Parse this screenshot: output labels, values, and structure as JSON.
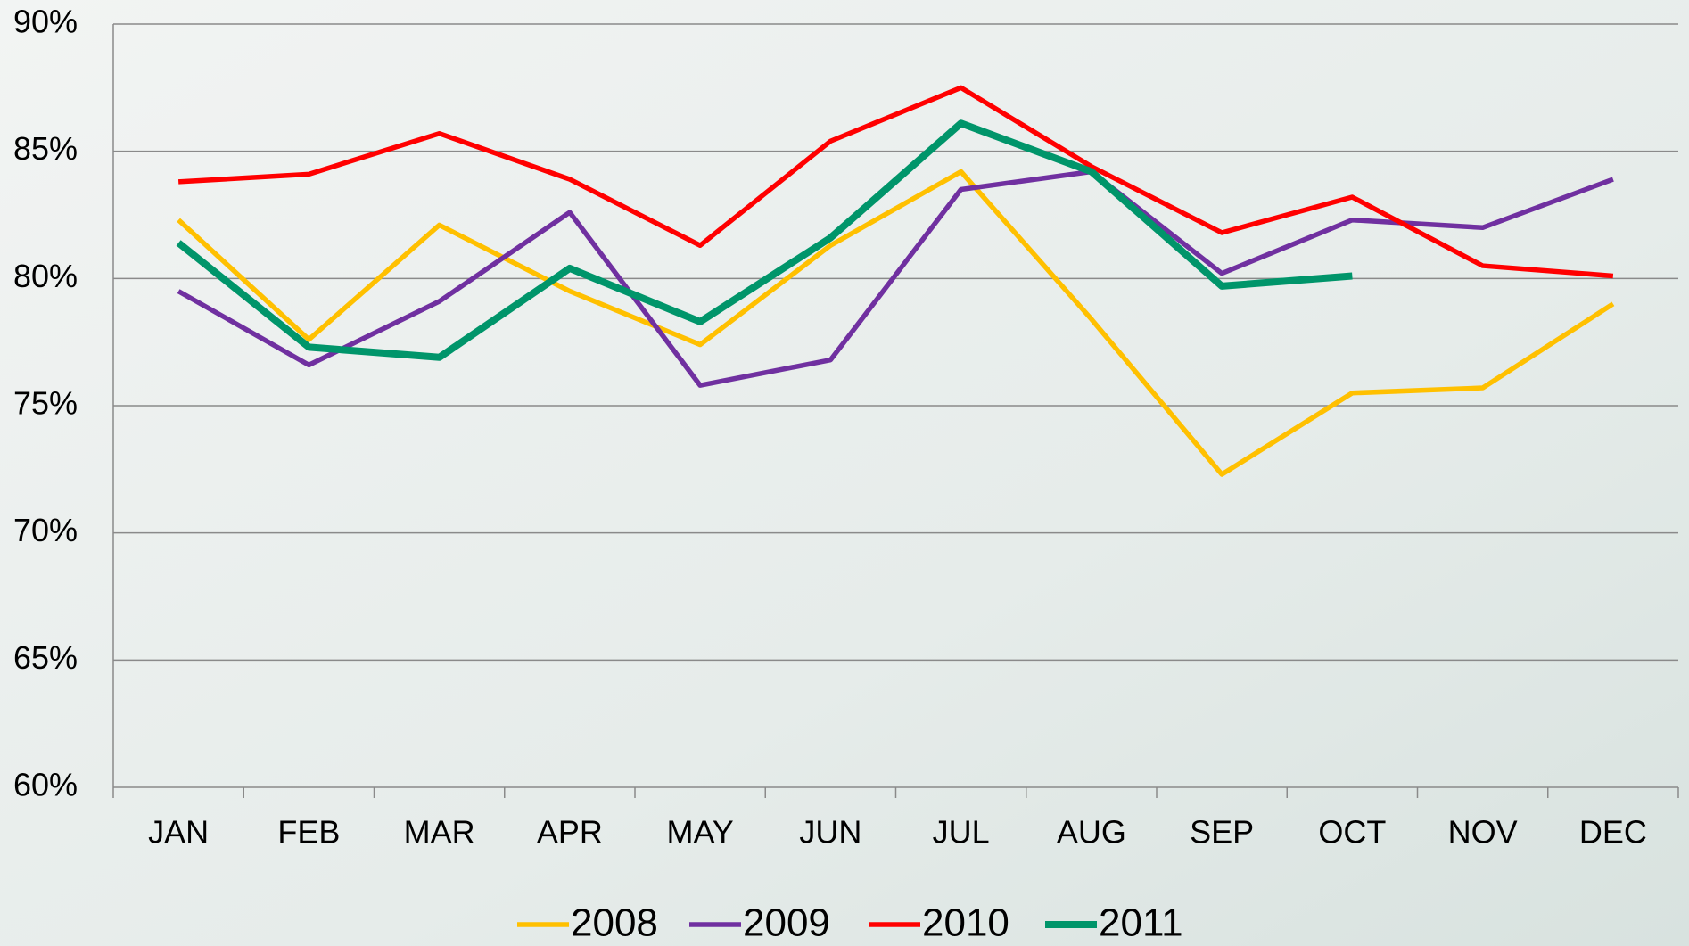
{
  "chart_data": {
    "type": "line",
    "categories": [
      "JAN",
      "FEB",
      "MAR",
      "APR",
      "MAY",
      "JUN",
      "JUL",
      "AUG",
      "SEP",
      "OCT",
      "NOV",
      "DEC"
    ],
    "series": [
      {
        "name": "2008",
        "color": "#ffc000",
        "values": [
          82.3,
          77.6,
          82.1,
          79.5,
          77.4,
          81.3,
          84.2,
          78.4,
          72.3,
          75.5,
          75.7,
          79.0
        ]
      },
      {
        "name": "2009",
        "color": "#7030a0",
        "values": [
          79.5,
          76.6,
          79.1,
          82.6,
          75.8,
          76.8,
          83.5,
          84.2,
          80.2,
          82.3,
          82.0,
          83.9
        ]
      },
      {
        "name": "2010",
        "color": "#ff0000",
        "values": [
          83.8,
          84.1,
          85.7,
          83.9,
          81.3,
          85.4,
          87.5,
          84.4,
          81.8,
          83.2,
          80.5,
          80.1
        ]
      },
      {
        "name": "2011",
        "color": "#00956a",
        "values": [
          81.4,
          77.3,
          76.9,
          80.4,
          78.3,
          81.6,
          86.1,
          84.2,
          79.7,
          80.1,
          null,
          null
        ]
      }
    ],
    "ylim": [
      60,
      90
    ],
    "yticks": [
      {
        "value": 60,
        "label": "60%"
      },
      {
        "value": 65,
        "label": "65%"
      },
      {
        "value": 70,
        "label": "70%"
      },
      {
        "value": 75,
        "label": "75%"
      },
      {
        "value": 80,
        "label": "80%"
      },
      {
        "value": 85,
        "label": "85%"
      },
      {
        "value": 90,
        "label": "90%"
      }
    ],
    "grid": true,
    "legend": "bottom"
  }
}
